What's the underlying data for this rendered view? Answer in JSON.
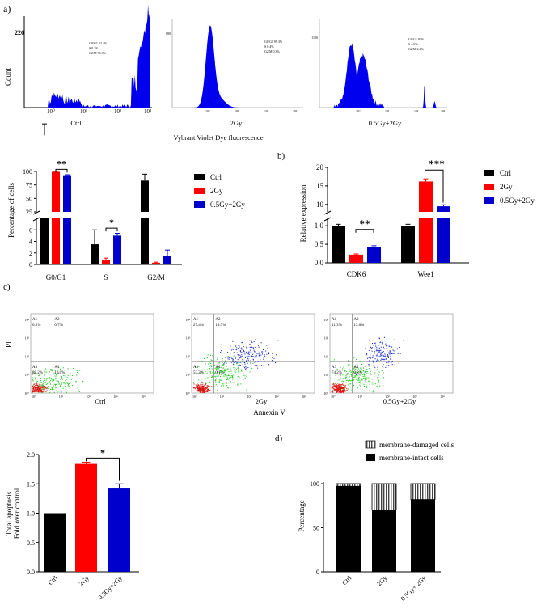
{
  "panel_labels": {
    "a": "a)",
    "b": "b)",
    "c": "c)",
    "d": "d)"
  },
  "flow_cytometry": {
    "ylabel": "Count",
    "xlabel": "Vybrant Violet Dye fluorescence",
    "panels": [
      {
        "label": "Ctrl",
        "ymax": "226",
        "stats": [
          "G0/G1  22.4%",
          "S       0.2%",
          "G2/M  76.3%"
        ],
        "ticks": [
          "10⁰",
          "10¹",
          "10²",
          "10³"
        ]
      },
      {
        "label": "2Gy",
        "ymax": "880",
        "stats": [
          "G0/G1  99.3%",
          "S       0.4%",
          "G2/M   0.3%"
        ],
        "ticks": [
          "10⁰",
          "10¹",
          "10²",
          "10³"
        ]
      },
      {
        "label": "0.5Gy+2Gy",
        "ymax": "1120",
        "stats": [
          "G0/G1  93%",
          "S       4.6%",
          "G2/M   2.4%"
        ],
        "ticks": [
          "10⁰",
          "10¹",
          "10²",
          "10³"
        ]
      }
    ]
  },
  "apoptosis_scatter": {
    "ylabel": "PI",
    "xlabel": "Annexin V",
    "panels": [
      {
        "label": "Ctrl",
        "A1": "0.0%",
        "A2": "0.7%",
        "A3": "89.2%",
        "A4": "10.0%"
      },
      {
        "label": "2Gy",
        "A1": "27.4%",
        "A2": "19.3%",
        "A3": "53.2%",
        "A4": "0.1%"
      },
      {
        "label": "0.5Gy+2Gy",
        "A1": "11.3%",
        "A2": "13.6%",
        "A3": "74.2%",
        "A4": "0.8%"
      }
    ],
    "quadrant_labels": [
      "A1",
      "A2",
      "A3",
      "A4"
    ],
    "decade_ticks": [
      "10⁰",
      "10¹",
      "10²",
      "10³",
      "10⁴"
    ]
  },
  "colors": {
    "ctrl": "#000000",
    "gy2": "#ff0000",
    "combo": "#0000cc",
    "hist": "#0000ee",
    "green": "#22cc22",
    "red": "#dd1111"
  },
  "chart_data": [
    {
      "id": "cell_cycle_percentages",
      "type": "bar",
      "ylabel": "Percentage of cells",
      "categories": [
        "G0/G1",
        "S",
        "G2/M"
      ],
      "series": [
        {
          "name": "Ctrl",
          "values": [
            22.4,
            3.5,
            83
          ],
          "errors": [
            2,
            2.5,
            12
          ]
        },
        {
          "name": "2Gy",
          "values": [
            99.3,
            0.8,
            0.3
          ],
          "errors": [
            1,
            0.3,
            0.1
          ]
        },
        {
          "name": "0.5Gy+2Gy",
          "values": [
            93,
            5.0,
            1.5
          ],
          "errors": [
            1,
            0.4,
            1
          ]
        }
      ],
      "broken_axis": {
        "lower": [
          0,
          8
        ],
        "upper": [
          25,
          100
        ]
      },
      "yticks_lower": [
        "0",
        "2",
        "4",
        "6"
      ],
      "yticks_upper": [
        "25",
        "50",
        "75",
        "100"
      ],
      "significance": [
        {
          "label": "**",
          "category": "G0/G1"
        },
        {
          "label": "*",
          "category": "S"
        }
      ],
      "legend": [
        "Ctrl",
        "2Gy",
        "0.5Gy+2Gy"
      ]
    },
    {
      "id": "relative_expression",
      "type": "bar",
      "ylabel": "Relative expression",
      "categories": [
        "CDK6",
        "Wee1"
      ],
      "series": [
        {
          "name": "Ctrl",
          "values": [
            1.0,
            1.0
          ],
          "errors": [
            0.04,
            0.04
          ]
        },
        {
          "name": "2Gy",
          "values": [
            0.22,
            16.2
          ],
          "errors": [
            0.02,
            0.7
          ]
        },
        {
          "name": "0.5Gy+2Gy",
          "values": [
            0.43,
            9.5
          ],
          "errors": [
            0.03,
            0.4
          ]
        }
      ],
      "broken_axis": {
        "lower": [
          0,
          1.2
        ],
        "upper": [
          8,
          20
        ]
      },
      "yticks_lower": [
        "0.0",
        "0.5",
        "1.0"
      ],
      "yticks_upper": [
        "10",
        "15",
        "20"
      ],
      "significance": [
        {
          "label": "**",
          "category": "CDK6"
        },
        {
          "label": "***",
          "category": "Wee1"
        }
      ],
      "legend": [
        "Ctrl",
        "2Gy",
        "0.5Gy+2Gy"
      ]
    },
    {
      "id": "total_apoptosis",
      "type": "bar",
      "ylabel_lines": [
        "Total apoptosis",
        "Fold over control"
      ],
      "categories": [
        "Ctrl",
        "2Gy",
        "0.5Gy+2Gy"
      ],
      "values": [
        1.0,
        1.84,
        1.42
      ],
      "errors": [
        0,
        0.03,
        0.08
      ],
      "ylim": [
        0,
        2.0
      ],
      "yticks": [
        "0.0",
        "0.5",
        "1.0",
        "1.5",
        "2.0"
      ],
      "significance": [
        {
          "label": "*",
          "from": "2Gy",
          "to": "0.5Gy+2Gy"
        }
      ]
    },
    {
      "id": "membrane_integrity",
      "type": "bar",
      "stacked": true,
      "ylabel": "Percentage",
      "categories": [
        "Ctrl",
        "2Gy",
        "0.5Gy+ 2Gy"
      ],
      "series": [
        {
          "name": "membrane-intact cells",
          "values": [
            97,
            70,
            82
          ]
        },
        {
          "name": "membrane-damaged cells",
          "values": [
            3,
            30,
            18
          ]
        }
      ],
      "ylim": [
        0,
        100
      ],
      "yticks": [
        "0",
        "50",
        "100"
      ],
      "legend": [
        "membrane-damaged cells",
        "membrane-intact cells"
      ]
    }
  ]
}
